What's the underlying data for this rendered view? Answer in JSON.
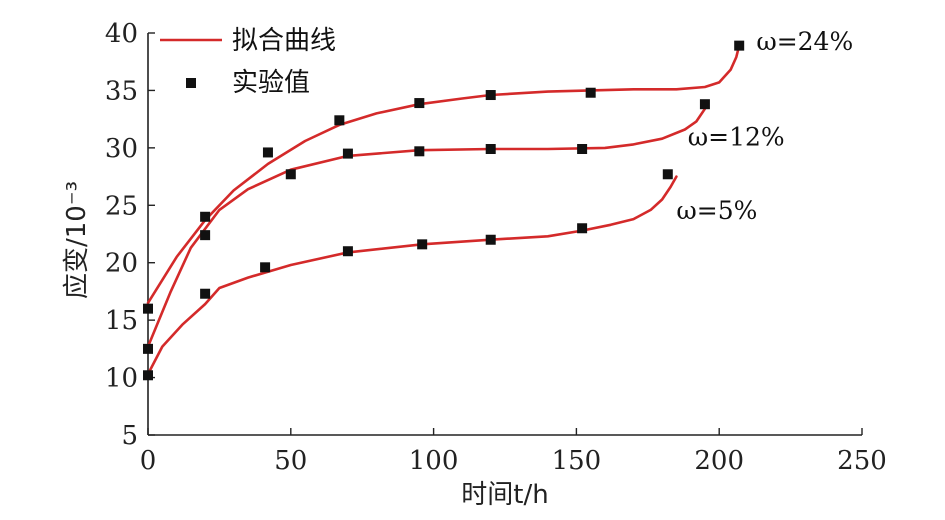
{
  "chart_data": {
    "type": "line",
    "xlabel": "时间t/h",
    "ylabel": "应变/10⁻³",
    "xlim": [
      0,
      250
    ],
    "ylim": [
      5,
      40
    ],
    "xticks": [
      0,
      50,
      100,
      150,
      200,
      250
    ],
    "yticks": [
      5,
      10,
      15,
      20,
      25,
      30,
      35,
      40
    ],
    "grid": false,
    "legend": {
      "position": "top-left",
      "fit_label": "拟合曲线",
      "points_label": "实验值"
    },
    "colors": {
      "fit": "#d42a2a",
      "points": "#111111",
      "axis": "#222222"
    },
    "series": [
      {
        "name": "ω=24%",
        "points": [
          [
            0,
            16
          ],
          [
            20,
            24
          ],
          [
            42,
            29.6
          ],
          [
            67,
            32.4
          ],
          [
            95,
            33.9
          ],
          [
            120,
            34.6
          ],
          [
            155,
            34.8
          ],
          [
            207,
            38.9
          ]
        ],
        "fit": [
          [
            0,
            16.5
          ],
          [
            10,
            20.5
          ],
          [
            20,
            23.7
          ],
          [
            30,
            26.3
          ],
          [
            42,
            28.6
          ],
          [
            55,
            30.6
          ],
          [
            67,
            32.0
          ],
          [
            80,
            33.0
          ],
          [
            95,
            33.8
          ],
          [
            110,
            34.3
          ],
          [
            120,
            34.6
          ],
          [
            140,
            34.9
          ],
          [
            155,
            35.0
          ],
          [
            170,
            35.1
          ],
          [
            185,
            35.1
          ],
          [
            195,
            35.3
          ],
          [
            200,
            35.7
          ],
          [
            204,
            36.8
          ],
          [
            206,
            37.9
          ],
          [
            207,
            38.9
          ]
        ]
      },
      {
        "name": "ω=12%",
        "points": [
          [
            0,
            12.5
          ],
          [
            20,
            22.4
          ],
          [
            50,
            27.7
          ],
          [
            70,
            29.5
          ],
          [
            95,
            29.7
          ],
          [
            120,
            29.9
          ],
          [
            152,
            29.9
          ],
          [
            195,
            33.8
          ]
        ],
        "fit": [
          [
            0,
            12.7
          ],
          [
            8,
            17.5
          ],
          [
            15,
            21.3
          ],
          [
            25,
            24.6
          ],
          [
            35,
            26.4
          ],
          [
            50,
            28.1
          ],
          [
            70,
            29.3
          ],
          [
            95,
            29.8
          ],
          [
            120,
            29.9
          ],
          [
            140,
            29.9
          ],
          [
            160,
            30.0
          ],
          [
            170,
            30.3
          ],
          [
            180,
            30.8
          ],
          [
            188,
            31.6
          ],
          [
            192,
            32.3
          ],
          [
            195,
            33.4
          ],
          [
            196,
            34.0
          ]
        ]
      },
      {
        "name": "ω=5%",
        "points": [
          [
            0,
            10.2
          ],
          [
            20,
            17.3
          ],
          [
            41,
            19.6
          ],
          [
            70,
            21.0
          ],
          [
            96,
            21.6
          ],
          [
            120,
            22.0
          ],
          [
            152,
            23.0
          ],
          [
            182,
            27.7
          ]
        ],
        "fit": [
          [
            0,
            10.3
          ],
          [
            5,
            12.7
          ],
          [
            12,
            14.6
          ],
          [
            20,
            16.4
          ],
          [
            25,
            17.8
          ],
          [
            35,
            18.7
          ],
          [
            50,
            19.8
          ],
          [
            70,
            20.9
          ],
          [
            96,
            21.6
          ],
          [
            120,
            22.0
          ],
          [
            140,
            22.3
          ],
          [
            152,
            22.8
          ],
          [
            162,
            23.3
          ],
          [
            170,
            23.8
          ],
          [
            176,
            24.6
          ],
          [
            180,
            25.5
          ],
          [
            183,
            26.6
          ],
          [
            185,
            27.5
          ]
        ]
      }
    ]
  }
}
